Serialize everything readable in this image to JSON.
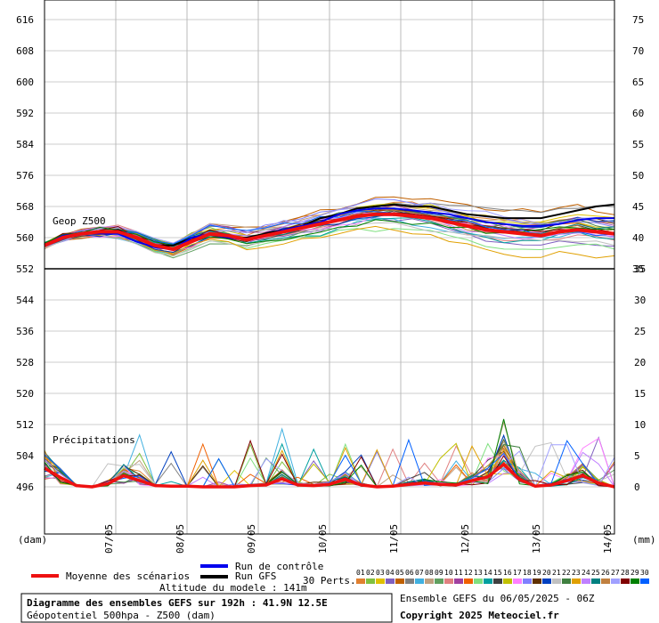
{
  "chart_data": {
    "type": "line",
    "x_dates": [
      "07/05",
      "08/05",
      "09/05",
      "10/05",
      "11/05",
      "12/05",
      "13/05",
      "14/05"
    ],
    "geop": {
      "label": "Geop Z500",
      "y_left_ticks": [
        552,
        560,
        568,
        576,
        584,
        592,
        600,
        608,
        616
      ],
      "y_right_ticks": [
        35,
        40,
        45,
        50,
        55,
        60,
        65,
        70,
        75
      ],
      "ylim_left": [
        552,
        620
      ],
      "mean": [
        558,
        560,
        561,
        561.5,
        561.5,
        560,
        558,
        557,
        559,
        561,
        560.5,
        559.5,
        560.5,
        561.5,
        562.5,
        563.5,
        564.5,
        565.5,
        566,
        566,
        565.5,
        565,
        564,
        563,
        562,
        561.5,
        561,
        560.5,
        561.5,
        562,
        561.5,
        561
      ],
      "control": [
        558,
        560.5,
        561,
        561,
        561,
        559,
        557.5,
        557,
        560,
        561,
        560,
        559.5,
        560.5,
        562,
        563,
        564,
        566,
        567,
        567.5,
        567.5,
        567,
        566.5,
        566,
        565,
        564,
        563.5,
        563,
        563,
        563.5,
        564.5,
        565,
        565
      ],
      "gfs": [
        558,
        560,
        561,
        561,
        562,
        560,
        558,
        558,
        560,
        561,
        560,
        560,
        561,
        562,
        563,
        565,
        566,
        567.5,
        568,
        568.5,
        568,
        568,
        567,
        566,
        565.5,
        565,
        565,
        565,
        566,
        567,
        568,
        568.5
      ]
    },
    "precip": {
      "label": "Précipitations",
      "y_left_ticks": [
        496,
        504,
        512,
        520,
        528,
        536,
        544
      ],
      "y_right_ticks": [
        0,
        5,
        10,
        15,
        20,
        25,
        30,
        35
      ],
      "ylim_right": [
        0,
        35
      ],
      "mean": [
        3,
        1.5,
        0.2,
        0,
        0.5,
        1.8,
        1,
        0.2,
        0.1,
        0.1,
        0,
        0,
        0,
        0.2,
        0.3,
        1.3,
        0.3,
        0.2,
        0.4,
        1.2,
        0.3,
        0,
        0.1,
        0.4,
        0.6,
        0.4,
        0.3,
        1,
        1.6,
        3.6,
        1.2,
        0.1,
        0.3,
        1,
        1.8,
        0.6,
        0
      ]
    },
    "units_left": "(dam)",
    "units_right": "(mm)"
  },
  "legend": {
    "mean_label": "Moyenne des scénarios",
    "control_label": "Run de contrôle",
    "gfs_label": "Run GFS",
    "perts_label": "30 Perts.",
    "perts_numbers": [
      "01",
      "02",
      "03",
      "04",
      "05",
      "06",
      "07",
      "08",
      "09",
      "10",
      "11",
      "12",
      "13",
      "14",
      "15",
      "16",
      "17",
      "18",
      "19",
      "20",
      "21",
      "22",
      "23",
      "24",
      "25",
      "26",
      "27",
      "28",
      "29",
      "30"
    ],
    "perts_colors": [
      "#e08030",
      "#80c040",
      "#e0c000",
      "#8060c0",
      "#c06000",
      "#808080",
      "#40b0e0",
      "#c0a080",
      "#60a060",
      "#e08080",
      "#a040a0",
      "#f06000",
      "#80e080",
      "#00a0a0",
      "#404040",
      "#c0c000",
      "#ff80ff",
      "#8080ff",
      "#603000",
      "#0040c0",
      "#c0c0c0",
      "#408040",
      "#e0a000",
      "#c080ff",
      "#008080",
      "#c08040",
      "#a0a0ff",
      "#800000",
      "#008000",
      "#0060ff"
    ],
    "mean_color": "#ee1111",
    "control_color": "#0000ee",
    "gfs_color": "#000000"
  },
  "altitude": "Altitude du modele : 141m",
  "footer": {
    "title": "Diagramme des ensembles GEFS sur 192h : 41.9N 12.5E",
    "subtitle": "Géopotentiel 500hpa - Z500 (dam)",
    "run": "Ensemble GEFS du 06/05/2025 - 06Z",
    "copyright": "Copyright 2025 Meteociel.fr"
  }
}
